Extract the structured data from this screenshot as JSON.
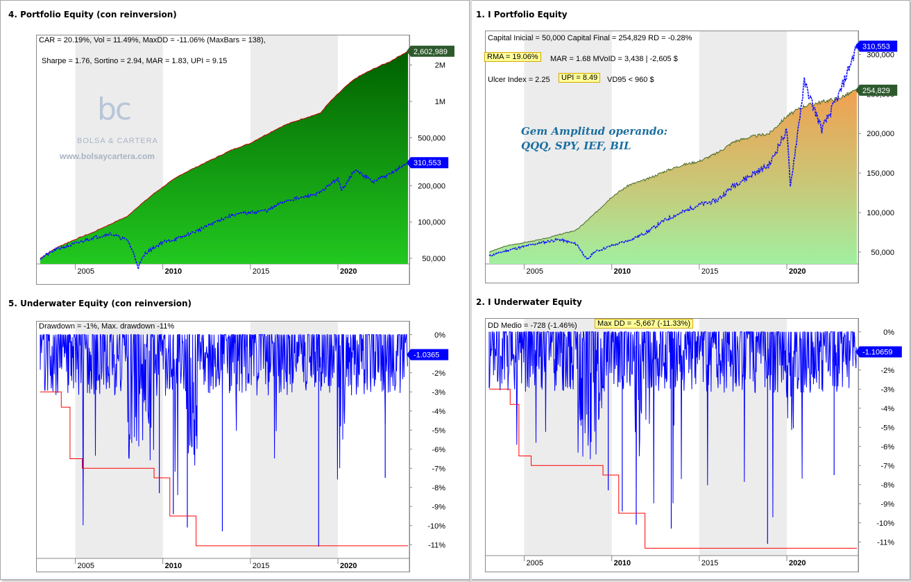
{
  "panels": {
    "p4": {
      "title": "4. Portfolio Equity (con reinversion)",
      "stats_line1": "CAR = 20.19%, Vol = 11.49%, MaxDD = -11.06% (MaxBars = 138),",
      "stats_line2": "Sharpe = 1.76, Sortino = 2.94, MAR = 1.83, UPI = 9.15",
      "watermark_url": "www.bolsaycartera.com",
      "watermark_brand": "BOLSA & CARTERA",
      "watermark_logo": "bc",
      "last_value_equity": "2,602,989",
      "last_value_benchmark": "310,553"
    },
    "p1": {
      "title": "1. I Portfolio Equity",
      "stats_line1": "Capital Inicial = 50,000  Capital Final = 254,829   RD = -0.28%",
      "rma": "RMA = 19.06%",
      "stats_line2_rest": "MAR = 1.68  MVoID = 3,438 | -2,605 $",
      "ulcer": "Ulcer Index = 2.25",
      "upi": "UPI = 8.49",
      "vd95": "VD95 < 960 $",
      "annotation_line1": "Gem Amplitud operando:",
      "annotation_line2": "QQQ, SPY, IEF, BIL",
      "last_value_equity": "254,829",
      "last_value_benchmark": "310,553"
    },
    "p5": {
      "title": "5. Underwater Equity (con reinversion)",
      "stats_line1": "Drawdown = -1%, Max. drawdown -11%",
      "last_value": "-1.0365"
    },
    "p2": {
      "title": "2. I Underwater Equity",
      "dd_medio": "DD Medio = -728 (-1.46%)",
      "max_dd": "Max DD = -5,667 (-11.33%)",
      "last_value": "-1.10659"
    }
  },
  "colors": {
    "benchmark_line": "#0000ff",
    "equity_green_top": "#006000",
    "equity_green_bottom": "#22c81f",
    "drawdown_red": "#ff0000",
    "label_blue": "#0000ff",
    "label_green": "#2d5a2d",
    "annotation_blue": "#1a6fa0",
    "year_shade": "#ececec"
  },
  "chart_data": [
    {
      "id": "p4",
      "type": "area",
      "title": "4. Portfolio Equity (con reinversion)",
      "log_scale": true,
      "ytick_labels": [
        "2M",
        "1M",
        "500,000",
        "200,000",
        "100,000",
        "50,000"
      ],
      "ytick_values": [
        2000000,
        1000000,
        500000,
        200000,
        100000,
        50000
      ],
      "xtick_labels": [
        "2005",
        "2010",
        "2015",
        "2020"
      ],
      "xtick_values": [
        2005,
        2010,
        2015,
        2020
      ],
      "xlim": [
        2003,
        2024
      ],
      "series": [
        {
          "name": "Portfolio Equity",
          "x": [
            2003,
            2004,
            2005,
            2006,
            2007,
            2008,
            2009,
            2010,
            2011,
            2012,
            2013,
            2014,
            2015,
            2016,
            2017,
            2018,
            2019,
            2020,
            2021,
            2022,
            2023,
            2024
          ],
          "values": [
            50000,
            62000,
            72000,
            82000,
            96000,
            112000,
            150000,
            195000,
            245000,
            290000,
            340000,
            400000,
            450000,
            540000,
            640000,
            720000,
            800000,
            1150000,
            1550000,
            1850000,
            2150000,
            2602989
          ]
        },
        {
          "name": "Benchmark",
          "x": [
            2003,
            2004,
            2005,
            2006,
            2007,
            2008,
            2008.6,
            2009,
            2010,
            2011,
            2012,
            2013,
            2014,
            2015,
            2016,
            2017,
            2018,
            2019,
            2020,
            2020.2,
            2021,
            2022,
            2023,
            2024
          ],
          "values": [
            50000,
            60000,
            66000,
            74000,
            80000,
            70000,
            42000,
            55000,
            68000,
            74000,
            85000,
            100000,
            115000,
            120000,
            125000,
            150000,
            160000,
            175000,
            230000,
            180000,
            270000,
            215000,
            250000,
            310553
          ]
        }
      ]
    },
    {
      "id": "p1",
      "type": "area",
      "title": "1. I Portfolio Equity",
      "log_scale": false,
      "ylim": [
        35000,
        325000
      ],
      "ytick_values": [
        50000,
        100000,
        150000,
        200000,
        250000,
        300000
      ],
      "ytick_labels": [
        "50,000",
        "100,000",
        "150,000",
        "200,000",
        "250,000",
        "300,000"
      ],
      "xtick_labels": [
        "2005",
        "2010",
        "2015",
        "2020"
      ],
      "xtick_values": [
        2005,
        2010,
        2015,
        2020
      ],
      "xlim": [
        2003,
        2024
      ],
      "series": [
        {
          "name": "Equity",
          "x": [
            2003,
            2004,
            2005,
            2006,
            2007,
            2008,
            2009,
            2010,
            2011,
            2012,
            2013,
            2014,
            2015,
            2016,
            2017,
            2018,
            2019,
            2020,
            2021,
            2022,
            2023,
            2024
          ],
          "values": [
            50000,
            58000,
            62000,
            66000,
            72000,
            78000,
            98000,
            120000,
            135000,
            142000,
            152000,
            160000,
            165000,
            175000,
            190000,
            196000,
            200000,
            222000,
            235000,
            240000,
            245000,
            254829
          ]
        },
        {
          "name": "Benchmark",
          "x": [
            2003,
            2004,
            2005,
            2006,
            2007,
            2008,
            2008.6,
            2009,
            2010,
            2011,
            2012,
            2013,
            2014,
            2015,
            2016,
            2017,
            2018,
            2019,
            2020,
            2020.2,
            2021,
            2022,
            2023,
            2024
          ],
          "values": [
            45000,
            52000,
            57000,
            62000,
            66000,
            60000,
            40000,
            50000,
            58000,
            65000,
            75000,
            90000,
            100000,
            110000,
            115000,
            135000,
            148000,
            160000,
            205000,
            132000,
            265000,
            205000,
            250000,
            310553
          ]
        }
      ]
    },
    {
      "id": "p5",
      "type": "area",
      "title": "5. Underwater Equity (con reinversion)",
      "ylim": [
        -11.5,
        0.5
      ],
      "ytick_values": [
        0,
        -2,
        -3,
        -4,
        -5,
        -6,
        -7,
        -8,
        -9,
        -10,
        -11
      ],
      "ytick_labels": [
        "0%",
        "-2%",
        "-3%",
        "-4%",
        "-5%",
        "-6%",
        "-7%",
        "-8%",
        "-9%",
        "-10%",
        "-11%"
      ],
      "xtick_labels": [
        "2005",
        "2010",
        "2015",
        "2020"
      ],
      "xtick_values": [
        2005,
        2010,
        2015,
        2020
      ],
      "xlim": [
        2003,
        2024
      ],
      "max_drawdown_steps": {
        "x": [
          2003,
          2004.2,
          2004.7,
          2005.4,
          2009.5,
          2010.4,
          2011.9,
          2024
        ],
        "values": [
          -3,
          -3.8,
          -6.5,
          -7,
          -7.5,
          -9.5,
          -11.06,
          -11.06
        ]
      }
    },
    {
      "id": "p2",
      "type": "area",
      "title": "2. I Underwater Equity",
      "ylim": [
        -11.5,
        0.5
      ],
      "ytick_values": [
        0,
        -2,
        -3,
        -4,
        -5,
        -6,
        -7,
        -8,
        -9,
        -10,
        -11
      ],
      "ytick_labels": [
        "0%",
        "-2%",
        "-3%",
        "-4%",
        "-5%",
        "-6%",
        "-7%",
        "-8%",
        "-9%",
        "-10%",
        "-11%"
      ],
      "xtick_labels": [
        "2005",
        "2010",
        "2015",
        "2020"
      ],
      "xtick_values": [
        2005,
        2010,
        2015,
        2020
      ],
      "xlim": [
        2003,
        2024
      ],
      "max_drawdown_steps": {
        "x": [
          2003,
          2004.2,
          2004.7,
          2005.4,
          2009.5,
          2010.4,
          2011.9,
          2024
        ],
        "values": [
          -3,
          -3.8,
          -6.5,
          -7,
          -7.5,
          -9.5,
          -11.33,
          -11.33
        ]
      }
    }
  ]
}
